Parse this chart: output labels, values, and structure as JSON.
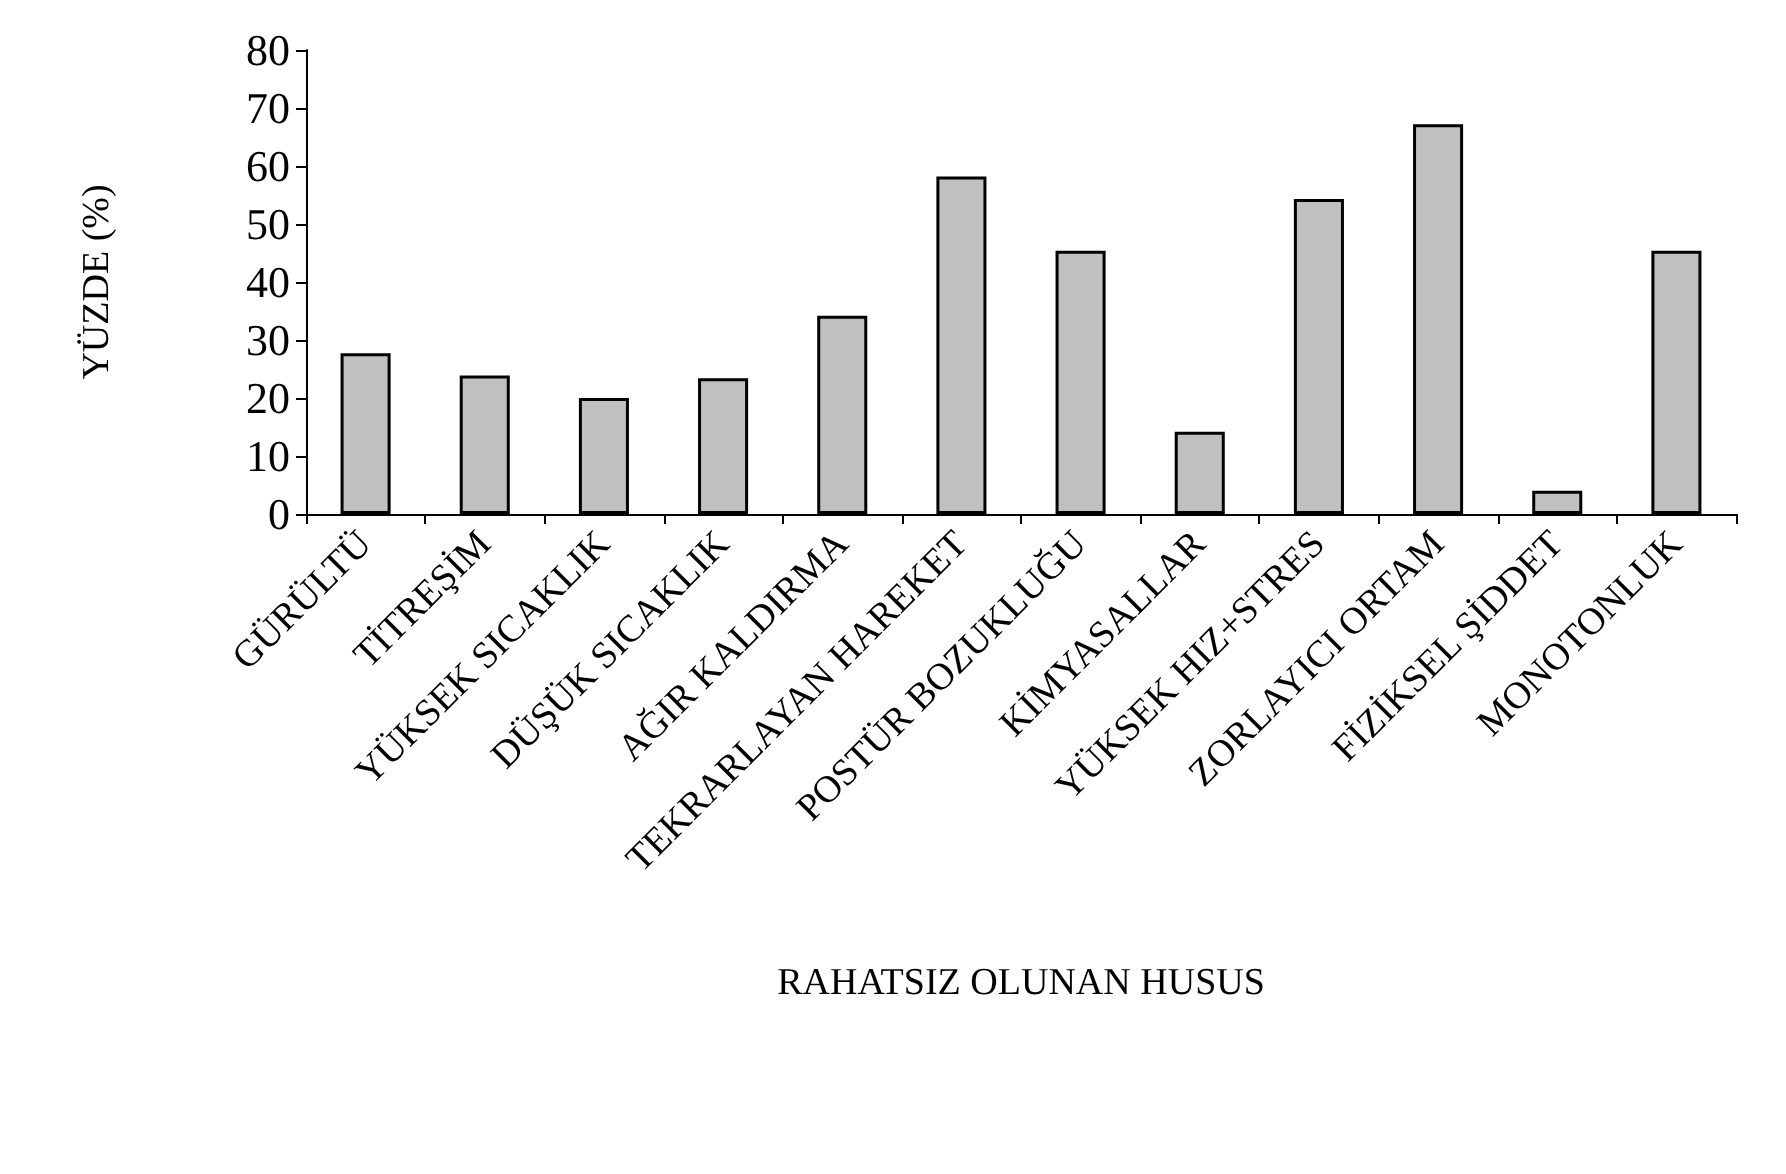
{
  "chart_data": {
    "type": "bar",
    "xlabel": "RAHATSIZ OLUNAN HUSUS",
    "ylabel": "YÜZDE (%)",
    "categories": [
      "GÜRÜLTÜ",
      "TİTREŞİM",
      "YÜKSEK SICAKLIK",
      "DÜŞÜK SICAKLIK",
      "AĞIR KALDIRMA",
      "TEKRARLAYAN HAREKET",
      "POSTÜR BOZUKLUĞU",
      "KİMYASALLAR",
      "YÜKSEK HIZ+STRES",
      "ZORLAYICI ORTAM",
      "FİZİKSEL ŞİDDET",
      "MONOTONLUK"
    ],
    "values": [
      27.7,
      23.9,
      20,
      23.4,
      34.2,
      58.2,
      45.4,
      14.2,
      54.3,
      67.2,
      4,
      45.4
    ],
    "color": "#c0c0c0",
    "ylim": [
      0,
      80
    ],
    "yticks": [
      0,
      10,
      20,
      30,
      40,
      50,
      60,
      70,
      80
    ],
    "grid": false
  }
}
